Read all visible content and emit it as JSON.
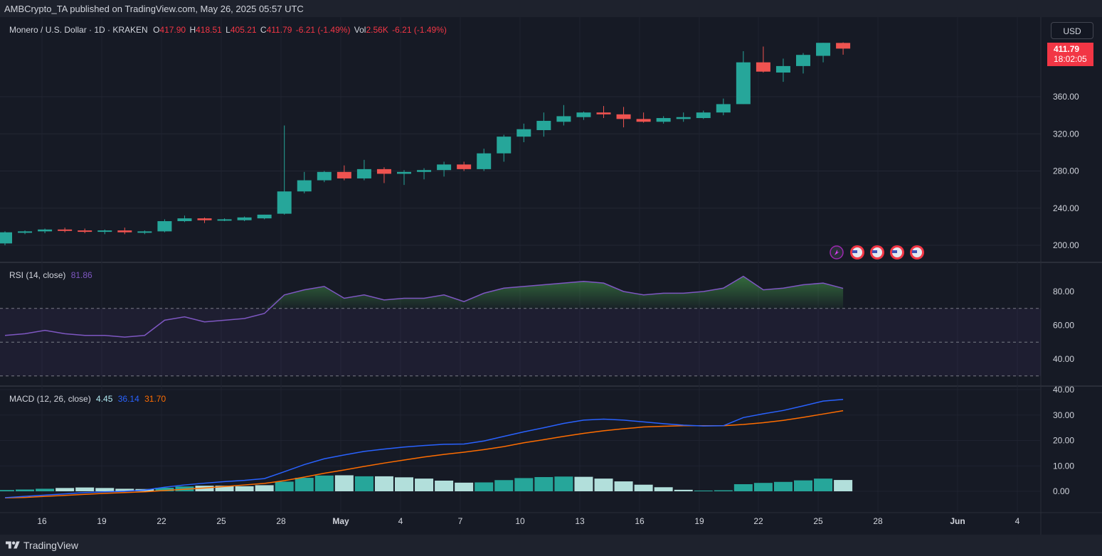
{
  "header": {
    "publisher_text": "AMBCrypto_TA published on TradingView.com, May 26, 2025 05:57 UTC"
  },
  "legend": {
    "symbol": "Monero / U.S. Dollar · 1D · KRAKEN",
    "o_label": "O",
    "o_value": "417.90",
    "h_label": "H",
    "h_value": "418.51",
    "l_label": "L",
    "l_value": "405.21",
    "c_label": "C",
    "c_value": "411.79",
    "change": "-6.21 (-1.49%)",
    "vol_label": "Vol",
    "vol_value": "2.56K",
    "vol_change": "-6.21 (-1.49%)"
  },
  "rsi_legend": {
    "label": "RSI (14, close)",
    "value": "81.86"
  },
  "macd_legend": {
    "label": "MACD (12, 26, close)",
    "histogram": "4.45",
    "macd": "36.14",
    "signal": "31.70"
  },
  "currency": "USD",
  "last_price": {
    "price": "411.79",
    "countdown": "18:02:05"
  },
  "footer": {
    "brand": "TradingView"
  },
  "colors": {
    "up": "#26a69a",
    "down": "#ef5350",
    "macd_line": "#2962ff",
    "signal_line": "#ff6d00",
    "rsi_line": "#7e57c2",
    "hist_dark": "#26a69a",
    "hist_light": "#b2dfdb"
  },
  "chart_data": [
    {
      "type": "candlestick",
      "title": "Monero / U.S. Dollar · 1D · KRAKEN",
      "ylim": [
        185,
        420
      ],
      "y_ticks": [
        200,
        240,
        280,
        320,
        360
      ],
      "y_tick_labels": [
        "200.00",
        "240.00",
        "280.00",
        "320.00",
        "360.00"
      ],
      "x_tick_labels": [
        "16",
        "19",
        "22",
        "25",
        "28",
        "May",
        "4",
        "7",
        "10",
        "13",
        "16",
        "19",
        "22",
        "25",
        "28",
        "Jun",
        "4"
      ],
      "candles": [
        {
          "o": 202,
          "h": 215,
          "l": 200,
          "c": 214
        },
        {
          "o": 214,
          "h": 216,
          "l": 212,
          "c": 215
        },
        {
          "o": 215,
          "h": 218,
          "l": 213,
          "c": 217
        },
        {
          "o": 217,
          "h": 219,
          "l": 214,
          "c": 216
        },
        {
          "o": 216,
          "h": 218,
          "l": 213,
          "c": 215
        },
        {
          "o": 215,
          "h": 217,
          "l": 212,
          "c": 216
        },
        {
          "o": 216,
          "h": 219,
          "l": 212,
          "c": 214
        },
        {
          "o": 214,
          "h": 216,
          "l": 212,
          "c": 215
        },
        {
          "o": 215,
          "h": 228,
          "l": 214,
          "c": 226
        },
        {
          "o": 226,
          "h": 232,
          "l": 225,
          "c": 229
        },
        {
          "o": 229,
          "h": 230,
          "l": 224,
          "c": 227
        },
        {
          "o": 227,
          "h": 229,
          "l": 226,
          "c": 228
        },
        {
          "o": 227,
          "h": 231,
          "l": 226,
          "c": 230
        },
        {
          "o": 229,
          "h": 233,
          "l": 228,
          "c": 233
        },
        {
          "o": 234,
          "h": 329,
          "l": 233,
          "c": 258
        },
        {
          "o": 258,
          "h": 279,
          "l": 256,
          "c": 270
        },
        {
          "o": 270,
          "h": 280,
          "l": 268,
          "c": 279
        },
        {
          "o": 279,
          "h": 286,
          "l": 270,
          "c": 272
        },
        {
          "o": 272,
          "h": 292,
          "l": 270,
          "c": 282
        },
        {
          "o": 282,
          "h": 284,
          "l": 267,
          "c": 277
        },
        {
          "o": 277,
          "h": 281,
          "l": 265,
          "c": 279
        },
        {
          "o": 279,
          "h": 283,
          "l": 271,
          "c": 281
        },
        {
          "o": 281,
          "h": 290,
          "l": 274,
          "c": 287
        },
        {
          "o": 287,
          "h": 290,
          "l": 280,
          "c": 282
        },
        {
          "o": 282,
          "h": 304,
          "l": 280,
          "c": 299
        },
        {
          "o": 299,
          "h": 319,
          "l": 290,
          "c": 317
        },
        {
          "o": 317,
          "h": 331,
          "l": 311,
          "c": 325
        },
        {
          "o": 324,
          "h": 343,
          "l": 317,
          "c": 334
        },
        {
          "o": 333,
          "h": 351,
          "l": 329,
          "c": 339
        },
        {
          "o": 338,
          "h": 344,
          "l": 335,
          "c": 343
        },
        {
          "o": 343,
          "h": 350,
          "l": 337,
          "c": 341
        },
        {
          "o": 341,
          "h": 349,
          "l": 327,
          "c": 336
        },
        {
          "o": 336,
          "h": 343,
          "l": 332,
          "c": 333
        },
        {
          "o": 333,
          "h": 339,
          "l": 331,
          "c": 337
        },
        {
          "o": 336,
          "h": 343,
          "l": 333,
          "c": 338
        },
        {
          "o": 337,
          "h": 345,
          "l": 336,
          "c": 343
        },
        {
          "o": 343,
          "h": 358,
          "l": 340,
          "c": 352
        },
        {
          "o": 352,
          "h": 409,
          "l": 352,
          "c": 397
        },
        {
          "o": 397,
          "h": 414,
          "l": 386,
          "c": 387
        },
        {
          "o": 386,
          "h": 401,
          "l": 376,
          "c": 393
        },
        {
          "o": 393,
          "h": 407,
          "l": 385,
          "c": 405
        },
        {
          "o": 404,
          "h": 418,
          "l": 397,
          "c": 418
        },
        {
          "o": 417.9,
          "h": 418.51,
          "l": 405.21,
          "c": 411.79
        }
      ]
    },
    {
      "type": "line",
      "title": "RSI (14, close)",
      "ylim": [
        30,
        96
      ],
      "y_ticks": [
        40,
        60,
        80
      ],
      "y_tick_labels": [
        "40.00",
        "60.00",
        "80.00"
      ],
      "bands": [
        70,
        50,
        30
      ],
      "values": [
        54,
        55,
        57,
        55,
        54,
        54,
        53,
        54,
        63,
        65,
        62,
        63,
        64,
        67,
        78,
        81,
        83,
        76,
        78,
        75,
        76,
        76,
        78,
        74,
        79,
        82,
        83,
        84,
        85,
        86,
        85,
        80,
        78,
        79,
        79,
        80,
        82,
        89,
        81,
        82,
        84,
        85,
        81.86
      ]
    },
    {
      "type": "macd",
      "title": "MACD (12, 26, close)",
      "ylim": [
        -3,
        40
      ],
      "y_ticks": [
        0,
        10,
        20,
        30,
        40
      ],
      "y_tick_labels": [
        "0.00",
        "10.00",
        "20.00",
        "30.00",
        "40.00"
      ],
      "macd": [
        -2.5,
        -2,
        -1.5,
        -1,
        -0.5,
        -0.2,
        0,
        0.5,
        1.6,
        2.5,
        3.2,
        3.8,
        4.3,
        5,
        7.7,
        10.5,
        12.8,
        14.3,
        15.7,
        16.6,
        17.4,
        18,
        18.5,
        18.6,
        19.8,
        21.6,
        23.4,
        25,
        26.7,
        28,
        28.4,
        28,
        27.3,
        26.6,
        26,
        25.7,
        25.8,
        29,
        30.5,
        31.8,
        33.6,
        35.5,
        36.14
      ],
      "signal": [
        -2.6,
        -2.4,
        -2,
        -1.6,
        -1.2,
        -0.8,
        -0.5,
        -0.2,
        0.3,
        0.8,
        1.3,
        1.9,
        2.5,
        3.1,
        4.2,
        5.6,
        7.1,
        8.4,
        9.8,
        11.1,
        12.3,
        13.5,
        14.5,
        15.4,
        16.4,
        17.6,
        19.1,
        20.3,
        21.6,
        22.8,
        23.8,
        24.6,
        25.3,
        25.6,
        25.8,
        25.8,
        25.8,
        26.3,
        27,
        27.9,
        29.1,
        30.4,
        31.7
      ],
      "histogram": [
        0.5,
        0.7,
        1.0,
        1.3,
        1.5,
        1.3,
        1.0,
        0.9,
        1.4,
        1.9,
        2.2,
        2.2,
        2.0,
        2.4,
        3.8,
        5.3,
        6.2,
        6.3,
        5.9,
        5.9,
        5.5,
        5.0,
        4.2,
        3.4,
        3.5,
        4.4,
        5.2,
        5.6,
        5.8,
        5.7,
        5.0,
        3.9,
        2.6,
        1.6,
        0.6,
        0.3,
        0.4,
        2.8,
        3.3,
        3.7,
        4.3,
        5.0,
        4.45
      ],
      "histogram_shade": [
        "d",
        "d",
        "d",
        "l",
        "l",
        "l",
        "l",
        "l",
        "d",
        "d",
        "l",
        "l",
        "l",
        "l",
        "d",
        "d",
        "d",
        "l",
        "d",
        "l",
        "l",
        "l",
        "l",
        "l",
        "d",
        "d",
        "d",
        "d",
        "d",
        "l",
        "l",
        "l",
        "l",
        "l",
        "l",
        "d",
        "d",
        "d",
        "d",
        "d",
        "d",
        "d",
        "l"
      ]
    }
  ]
}
